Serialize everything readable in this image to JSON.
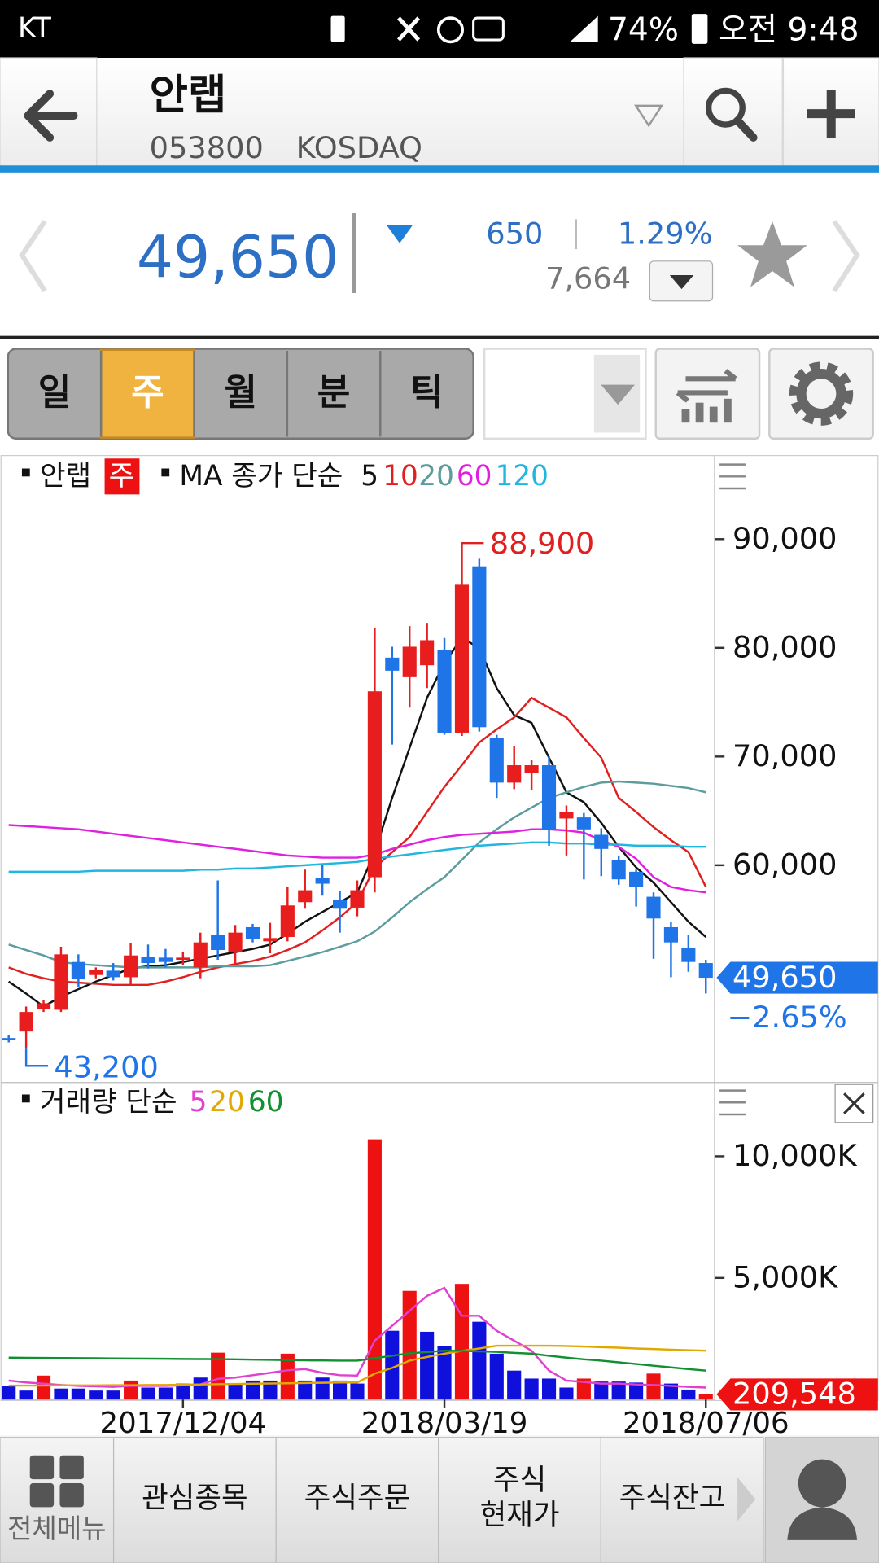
{
  "status_bar": {
    "carrier": "KT",
    "battery": "74%",
    "time": "오전 9:48"
  },
  "header": {
    "title": "안랩",
    "code": "053800",
    "market": "KOSDAQ"
  },
  "quote": {
    "price": "49,650",
    "change": "650",
    "rate": "1.29%",
    "volume": "7,664"
  },
  "period_tabs": {
    "items": [
      "일",
      "주",
      "월",
      "분",
      "틱"
    ],
    "selected": 1
  },
  "chart_data": [
    {
      "type": "candlestick",
      "legend_title": "안랩",
      "period_badge": "주",
      "ma_label": "MA 종가 단순",
      "up_color": "#e81e1e",
      "down_color": "#1f74e8",
      "open": [
        44100,
        44700,
        46800,
        46700,
        51100,
        49900,
        50300,
        49700,
        51600,
        51500,
        51300,
        50600,
        53600,
        52000,
        54300,
        53000,
        53400,
        56600,
        58800,
        56800,
        56100,
        58900,
        79100,
        77300,
        78400,
        79800,
        72200,
        87500,
        71700,
        67600,
        68500,
        69200,
        64300,
        64400,
        62800,
        60500,
        59400,
        57100,
        54300,
        52400,
        51000
      ],
      "high": [
        44400,
        47000,
        47600,
        52500,
        51800,
        50600,
        51000,
        52800,
        52700,
        52300,
        52000,
        53800,
        58600,
        54500,
        54600,
        54700,
        58000,
        59600,
        60000,
        57600,
        58600,
        81800,
        80100,
        82000,
        82300,
        80900,
        88900,
        88200,
        72000,
        71000,
        69700,
        70000,
        65500,
        64800,
        63400,
        60900,
        59600,
        57500,
        54800,
        53600,
        51300
      ],
      "low": [
        43700,
        43200,
        46500,
        46500,
        48800,
        49600,
        49400,
        49000,
        50500,
        50600,
        50800,
        49600,
        51300,
        50800,
        52900,
        51900,
        53000,
        56000,
        57200,
        53800,
        55300,
        57500,
        71100,
        74500,
        76300,
        72000,
        71900,
        72300,
        66200,
        67000,
        66900,
        61800,
        60900,
        58700,
        59000,
        58200,
        56200,
        51400,
        49700,
        50200,
        48200
      ],
      "close": [
        43900,
        46500,
        47300,
        51800,
        49500,
        50400,
        49700,
        51700,
        51000,
        51100,
        51500,
        52900,
        52200,
        53800,
        53200,
        53300,
        56300,
        57700,
        58300,
        56000,
        57700,
        76000,
        77900,
        80100,
        80700,
        72200,
        85800,
        72700,
        67600,
        69200,
        69200,
        63300,
        64900,
        63300,
        61500,
        58700,
        58000,
        55100,
        52900,
        51100,
        49650
      ],
      "series": [
        {
          "name": "5",
          "color": "#111111",
          "values": [
            49300,
            48200,
            47000,
            47900,
            48600,
            49300,
            49900,
            50500,
            50700,
            50800,
            51100,
            51400,
            51700,
            52000,
            52300,
            52700,
            53700,
            54800,
            55700,
            56600,
            57500,
            61200,
            66200,
            70800,
            75400,
            78600,
            80900,
            80000,
            76300,
            73800,
            73100,
            69900,
            66700,
            65800,
            63900,
            61700,
            59800,
            58400,
            56600,
            54800,
            53400
          ]
        },
        {
          "name": "10",
          "color": "#e02020",
          "values": [
            50600,
            50000,
            49600,
            49300,
            49200,
            49100,
            49000,
            49000,
            49000,
            49300,
            49700,
            50200,
            50600,
            50900,
            51200,
            51600,
            52200,
            52900,
            54000,
            55200,
            56600,
            59800,
            61200,
            62600,
            64900,
            67200,
            69200,
            71300,
            72500,
            73600,
            75400,
            74500,
            73600,
            71700,
            69900,
            66200,
            64900,
            63500,
            62300,
            61200,
            58000
          ]
        },
        {
          "name": "20",
          "color": "#5c9c9c",
          "values": [
            52700,
            52200,
            51700,
            51100,
            50900,
            50800,
            50700,
            50600,
            50600,
            50600,
            50600,
            50600,
            50700,
            50700,
            50700,
            50800,
            51200,
            51600,
            52000,
            52500,
            53000,
            53900,
            55200,
            56600,
            57800,
            58900,
            60500,
            62100,
            63300,
            64400,
            65300,
            66200,
            66700,
            67200,
            67600,
            67700,
            67600,
            67500,
            67300,
            67100,
            66700
          ]
        },
        {
          "name": "60",
          "color": "#e020e0",
          "values": [
            63700,
            63600,
            63500,
            63400,
            63300,
            63100,
            62900,
            62700,
            62500,
            62300,
            62100,
            61900,
            61700,
            61500,
            61300,
            61100,
            60900,
            60800,
            60700,
            60700,
            60700,
            61000,
            61500,
            61900,
            62300,
            62600,
            62800,
            62900,
            63000,
            63100,
            63300,
            63300,
            63200,
            63000,
            62300,
            61700,
            60600,
            58900,
            58000,
            57700,
            57500
          ]
        },
        {
          "name": "120",
          "color": "#1fb6e0",
          "values": [
            59400,
            59400,
            59400,
            59400,
            59400,
            59500,
            59500,
            59500,
            59500,
            59500,
            59500,
            59600,
            59600,
            59700,
            59700,
            59800,
            59900,
            60000,
            60100,
            60200,
            60300,
            60600,
            60800,
            61000,
            61200,
            61400,
            61600,
            61800,
            61900,
            62000,
            62100,
            62100,
            62000,
            62000,
            61900,
            61900,
            61800,
            61800,
            61800,
            61700,
            61700
          ]
        }
      ],
      "ylim": [
        40100,
        97600
      ],
      "yticks": [
        {
          "value": 90000,
          "label": "90,000"
        },
        {
          "value": 80000,
          "label": "80,000"
        },
        {
          "value": 70000,
          "label": "70,000"
        },
        {
          "value": 60000,
          "label": "60,000"
        }
      ],
      "max_label": {
        "value": 88900,
        "label": "88,900"
      },
      "min_label": {
        "value": 43200,
        "label": "43,200"
      },
      "last_label": {
        "value": 49650,
        "label": "49,650"
      },
      "change_label": {
        "value": -2.65,
        "label": "−2.65%"
      }
    },
    {
      "type": "bar",
      "legend_title": "거래량 단순",
      "categories": [
        null,
        null,
        null,
        null,
        null,
        null,
        null,
        null,
        null,
        null,
        "2017/12/04",
        null,
        null,
        null,
        null,
        null,
        null,
        null,
        null,
        null,
        null,
        null,
        null,
        null,
        null,
        "2018/03/19",
        null,
        null,
        null,
        null,
        null,
        null,
        null,
        null,
        null,
        null,
        null,
        null,
        null,
        null,
        "2018/07/06"
      ],
      "values": [
        574,
        369,
        984,
        451,
        451,
        369,
        369,
        779,
        492,
        492,
        656,
        902,
        1926,
        656,
        779,
        779,
        1885,
        779,
        902,
        779,
        656,
        10697,
        2828,
        4467,
        2787,
        2213,
        4754,
        3197,
        1885,
        1188,
        861,
        861,
        492,
        861,
        738,
        738,
        697,
        1066,
        656,
        410,
        209.548
      ],
      "colors": [
        "#1010dd",
        "#1010dd",
        "#ee1111",
        "#1010dd",
        "#1010dd",
        "#1010dd",
        "#1010dd",
        "#ee1111",
        "#1010dd",
        "#1010dd",
        "#1010dd",
        "#1010dd",
        "#ee1111",
        "#1010dd",
        "#1010dd",
        "#1010dd",
        "#ee1111",
        "#1010dd",
        "#1010dd",
        "#1010dd",
        "#1010dd",
        "#ee1111",
        "#1010dd",
        "#ee1111",
        "#1010dd",
        "#1010dd",
        "#ee1111",
        "#1010dd",
        "#1010dd",
        "#1010dd",
        "#1010dd",
        "#1010dd",
        "#1010dd",
        "#ee1111",
        "#1010dd",
        "#1010dd",
        "#1010dd",
        "#ee1111",
        "#1010dd",
        "#1010dd",
        "#ee1111"
      ],
      "series": [
        {
          "name": "5",
          "color": "#e040d0",
          "values": [
            780,
            700,
            650,
            600,
            560,
            540,
            520,
            560,
            560,
            560,
            580,
            620,
            850,
            900,
            1000,
            1100,
            1200,
            1250,
            1100,
            1000,
            984,
            2418,
            3033,
            3647,
            4262,
            4590,
            3442,
            3442,
            2828,
            2418,
            2008,
            1188,
            779,
            720,
            656,
            656,
            620,
            600,
            560,
            520,
            492
          ]
        },
        {
          "name": "20",
          "color": "#e0a800",
          "values": [
            574,
            574,
            574,
            580,
            580,
            580,
            590,
            590,
            600,
            600,
            610,
            620,
            630,
            640,
            650,
            660,
            670,
            680,
            690,
            700,
            700,
            1066,
            1300,
            1598,
            1750,
            1885,
            2000,
            2100,
            2213,
            2213,
            2213,
            2213,
            2200,
            2180,
            2150,
            2131,
            2100,
            2080,
            2050,
            2030,
            2008
          ]
        },
        {
          "name": "60",
          "color": "#109030",
          "values": [
            1720,
            1715,
            1710,
            1705,
            1700,
            1695,
            1690,
            1685,
            1680,
            1675,
            1670,
            1665,
            1660,
            1650,
            1640,
            1630,
            1620,
            1610,
            1605,
            1600,
            1598,
            1700,
            1800,
            1900,
            1950,
            2008,
            2000,
            1980,
            1960,
            1920,
            1885,
            1800,
            1720,
            1650,
            1598,
            1530,
            1460,
            1390,
            1320,
            1250,
            1188
          ]
        }
      ],
      "ylim": [
        0,
        12870
      ],
      "yticks": [
        {
          "value": 10000,
          "label": "10,000K"
        },
        {
          "value": 5000,
          "label": "5,000K"
        }
      ],
      "last_label": {
        "value": 209.548,
        "label": "209,548"
      }
    }
  ],
  "bottom_nav": {
    "items": [
      "전체메뉴",
      "관심종목",
      "주식주문",
      [
        "주식",
        "현재가"
      ],
      "주식잔고"
    ]
  }
}
